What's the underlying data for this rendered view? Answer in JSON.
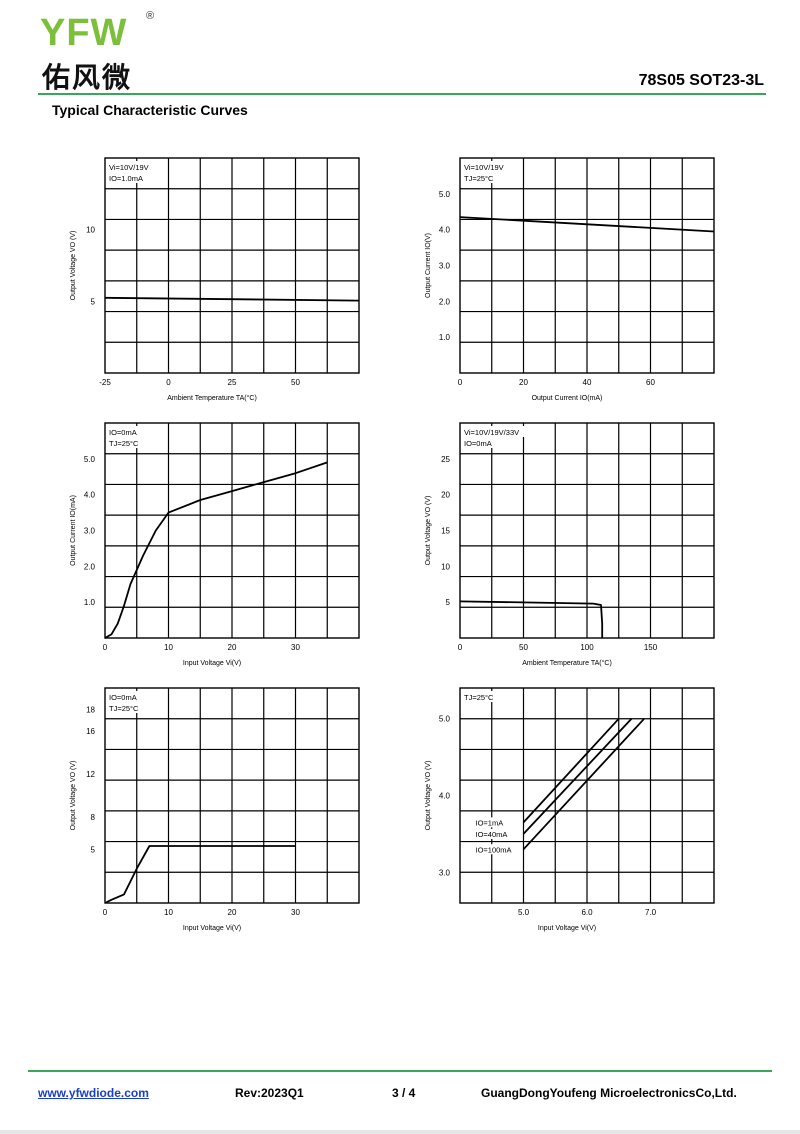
{
  "header": {
    "logo_text": "YFW",
    "logo_reg": "®",
    "logo_cn": "佑风微",
    "part_number": "78S05 SOT23-3L",
    "section_title": "Typical Characteristic Curves"
  },
  "footer": {
    "url": "www.yfwdiode.com",
    "revision": "Rev:2023Q1",
    "page": "3 / 4",
    "company": "GuangDongYoufeng MicroelectronicsCo,Ltd."
  },
  "chart_data": [
    {
      "type": "line",
      "annotations": [
        "Vi=10V/19V",
        "IO=1.0mA"
      ],
      "xlabel": "Ambient Temperature TA(°C)",
      "ylabel": "Output Voltage VO (V)",
      "xlim": [
        -25,
        75
      ],
      "ylim": [
        0,
        15
      ],
      "xticks": [
        -25,
        0,
        25,
        50
      ],
      "xtick_labels": [
        "-25",
        "0",
        "25",
        "50"
      ],
      "yticks": [
        5,
        10
      ],
      "ytick_labels": [
        "5",
        "10"
      ],
      "grid": true,
      "series": [
        {
          "x": [
            -25,
            75
          ],
          "y": [
            5.25,
            5.05
          ]
        }
      ]
    },
    {
      "type": "line",
      "annotations": [
        "Vi=10V/19V",
        "TJ=25°C"
      ],
      "xlabel": "Output Current IO(mA)",
      "ylabel": "Output Current IO(V)",
      "xlim": [
        0,
        80
      ],
      "ylim": [
        0,
        6
      ],
      "xticks": [
        0,
        20,
        40,
        60
      ],
      "xtick_labels": [
        "0",
        "20",
        "40",
        "60"
      ],
      "yticks": [
        1,
        2,
        3,
        4,
        5
      ],
      "ytick_labels": [
        "1.0",
        "2.0",
        "3.0",
        "4.0",
        "5.0"
      ],
      "grid": true,
      "series": [
        {
          "x": [
            0,
            80
          ],
          "y": [
            4.35,
            3.95
          ]
        }
      ]
    },
    {
      "type": "line",
      "annotations": [
        "IO=0mA",
        "TJ=25°C"
      ],
      "xlabel": "Input Voltage Vi(V)",
      "ylabel": "Output Current IO(mA)",
      "xlim": [
        0,
        40
      ],
      "ylim": [
        0,
        6
      ],
      "xticks": [
        0,
        10,
        20,
        30
      ],
      "xtick_labels": [
        "0",
        "10",
        "20",
        "30"
      ],
      "yticks": [
        1,
        2,
        3,
        4,
        5
      ],
      "ytick_labels": [
        "1.0",
        "2.0",
        "3.0",
        "4.0",
        "5.0"
      ],
      "grid": true,
      "series": [
        {
          "x": [
            0,
            1,
            2,
            3,
            4,
            6,
            8,
            10,
            15,
            20,
            25,
            30,
            35
          ],
          "y": [
            0,
            0.1,
            0.4,
            0.9,
            1.5,
            2.3,
            3.0,
            3.5,
            3.85,
            4.1,
            4.35,
            4.6,
            4.9
          ]
        }
      ]
    },
    {
      "type": "line",
      "annotations": [
        "Vi=10V/19V/33V",
        "IO=0mA"
      ],
      "xlabel": "Ambient Temperature TA(°C)",
      "ylabel": "Output Voltage VO (V)",
      "xlim": [
        0,
        200
      ],
      "ylim": [
        0,
        30
      ],
      "xticks": [
        0,
        50,
        100,
        150
      ],
      "xtick_labels": [
        "0",
        "50",
        "100",
        "150"
      ],
      "yticks": [
        5,
        10,
        15,
        20,
        25
      ],
      "ytick_labels": [
        "5",
        "10",
        "15",
        "20",
        "25"
      ],
      "grid": true,
      "series": [
        {
          "x": [
            0,
            55,
            105,
            111,
            112,
            112
          ],
          "y": [
            5.1,
            4.95,
            4.8,
            4.6,
            2.0,
            0
          ]
        }
      ]
    },
    {
      "type": "line",
      "annotations": [
        "IO=0mA",
        "TJ=25°C"
      ],
      "xlabel": "Input Voltage Vi(V)",
      "ylabel": "Output Voltage VO (V)",
      "xlim": [
        0,
        40
      ],
      "ylim": [
        0,
        20
      ],
      "xticks": [
        0,
        10,
        20,
        30
      ],
      "xtick_labels": [
        "0",
        "10",
        "20",
        "30"
      ],
      "yticks": [
        5,
        8,
        12,
        16,
        18
      ],
      "ytick_labels": [
        "5",
        "8",
        "12",
        "16",
        "18"
      ],
      "grid": true,
      "series": [
        {
          "x": [
            0,
            1,
            3,
            5,
            7,
            30
          ],
          "y": [
            0,
            0.3,
            0.8,
            3.2,
            5.3,
            5.3
          ]
        }
      ]
    },
    {
      "type": "line",
      "annotations": [
        "TJ=25°C"
      ],
      "xlabel": "Input Voltage Vi(V)",
      "ylabel": "Output Voltage VO (V)",
      "xlim": [
        4,
        8
      ],
      "ylim": [
        2.6,
        5.4
      ],
      "xticks": [
        5,
        6,
        7
      ],
      "xtick_labels": [
        "5.0",
        "6.0",
        "7.0"
      ],
      "yticks": [
        3,
        4,
        5
      ],
      "ytick_labels": [
        "3.0",
        "4.0",
        "5.0"
      ],
      "grid": true,
      "series": [
        {
          "name": "IO=1mA",
          "x": [
            5.0,
            6.5
          ],
          "y": [
            3.65,
            5.0
          ]
        },
        {
          "name": "IO=40mA",
          "x": [
            5.0,
            6.7
          ],
          "y": [
            3.5,
            5.0
          ]
        },
        {
          "name": "IO=100mA",
          "x": [
            5.0,
            6.9
          ],
          "y": [
            3.3,
            5.0
          ]
        }
      ]
    }
  ]
}
